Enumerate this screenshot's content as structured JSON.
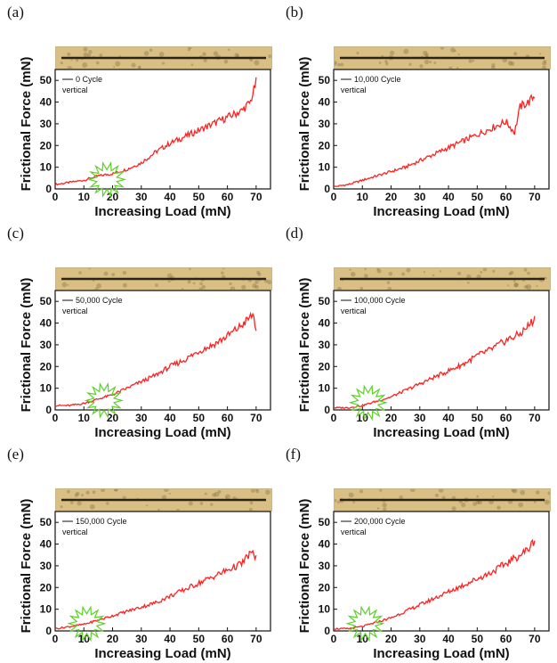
{
  "panels_meta": {
    "line_color": "#ff2020",
    "highlight_color": "#5ecf2a",
    "micro_bg": "#d9bf83",
    "scratch_color": "#2a2418"
  },
  "chart_data": [
    {
      "type": "line",
      "panel_label": "(a)",
      "xlabel": "Increasing Load (mN)",
      "ylabel": "Frictional Force (mN)",
      "xlim": [
        0,
        75
      ],
      "ylim": [
        0,
        55
      ],
      "xticks": [
        0,
        10,
        20,
        30,
        40,
        50,
        60,
        70
      ],
      "yticks": [
        0,
        10,
        20,
        30,
        40,
        50
      ],
      "legend": [
        "0 Cycle",
        "vertical"
      ],
      "highlight_x": 18,
      "series": [
        {
          "x": [
            0,
            5,
            10,
            15,
            20,
            25,
            30,
            35,
            40,
            45,
            50,
            55,
            60,
            65,
            68,
            70
          ],
          "values": [
            2,
            3,
            4,
            6,
            7,
            9,
            12,
            17,
            21,
            24,
            27,
            30,
            33,
            36,
            40,
            49
          ]
        }
      ]
    },
    {
      "type": "line",
      "panel_label": "(b)",
      "xlabel": "Increasing Load (mN)",
      "ylabel": "Frictional Force (mN)",
      "xlim": [
        0,
        75
      ],
      "ylim": [
        0,
        55
      ],
      "xticks": [
        0,
        10,
        20,
        30,
        40,
        50,
        60,
        70
      ],
      "yticks": [
        0,
        10,
        20,
        30,
        40,
        50
      ],
      "legend": [
        "10,000 Cycle",
        "vertical"
      ],
      "highlight_x": null,
      "series": [
        {
          "x": [
            0,
            5,
            10,
            15,
            20,
            25,
            30,
            35,
            40,
            45,
            50,
            55,
            60,
            63,
            65,
            68,
            70
          ],
          "values": [
            1,
            2,
            4,
            6,
            8,
            10,
            13,
            16,
            19,
            22,
            25,
            28,
            31,
            26,
            38,
            40,
            43
          ]
        }
      ]
    },
    {
      "type": "line",
      "panel_label": "(c)",
      "xlabel": "Increasing Load (mN)",
      "ylabel": "Frictional Force (mN)",
      "xlim": [
        0,
        75
      ],
      "ylim": [
        0,
        55
      ],
      "xticks": [
        0,
        10,
        20,
        30,
        40,
        50,
        60,
        70
      ],
      "yticks": [
        0,
        10,
        20,
        30,
        40,
        50
      ],
      "legend": [
        "50,000 Cycle",
        "vertical"
      ],
      "highlight_x": 17,
      "series": [
        {
          "x": [
            0,
            5,
            10,
            15,
            20,
            25,
            30,
            35,
            40,
            45,
            50,
            55,
            60,
            65,
            69,
            70
          ],
          "values": [
            2,
            2,
            3,
            5,
            7,
            10,
            13,
            16,
            20,
            23,
            27,
            30,
            34,
            39,
            44,
            37
          ]
        }
      ]
    },
    {
      "type": "line",
      "panel_label": "(d)",
      "xlabel": "Increasing Load (mN)",
      "ylabel": "Frictional Force (mN)",
      "xlim": [
        0,
        75
      ],
      "ylim": [
        0,
        55
      ],
      "xticks": [
        0,
        10,
        20,
        30,
        40,
        50,
        60,
        70
      ],
      "yticks": [
        0,
        10,
        20,
        30,
        40,
        50
      ],
      "legend": [
        "100,000 Cycle",
        "vertical"
      ],
      "highlight_x": 12,
      "series": [
        {
          "x": [
            0,
            5,
            10,
            15,
            20,
            25,
            30,
            35,
            40,
            45,
            50,
            55,
            60,
            65,
            68,
            70
          ],
          "values": [
            1,
            1,
            2,
            4,
            6,
            9,
            12,
            15,
            18,
            21,
            25,
            28,
            32,
            35,
            39,
            42
          ]
        }
      ]
    },
    {
      "type": "line",
      "panel_label": "(e)",
      "xlabel": "Increasing Load (mN)",
      "ylabel": "Frictional Force (mN)",
      "xlim": [
        0,
        75
      ],
      "ylim": [
        0,
        55
      ],
      "xticks": [
        0,
        10,
        20,
        30,
        40,
        50,
        60,
        70
      ],
      "yticks": [
        0,
        10,
        20,
        30,
        40,
        50
      ],
      "legend": [
        "150,000 Cycle",
        "vertical"
      ],
      "highlight_x": 11,
      "series": [
        {
          "x": [
            0,
            5,
            10,
            15,
            20,
            25,
            30,
            35,
            40,
            45,
            50,
            55,
            60,
            65,
            68,
            70
          ],
          "values": [
            1,
            2,
            3,
            5,
            7,
            9,
            11,
            13,
            16,
            19,
            22,
            25,
            28,
            31,
            36,
            34
          ]
        }
      ]
    },
    {
      "type": "line",
      "panel_label": "(f)",
      "xlabel": "Increasing Load (mN)",
      "ylabel": "Frictional Force (mN)",
      "xlim": [
        0,
        75
      ],
      "ylim": [
        0,
        55
      ],
      "xticks": [
        0,
        10,
        20,
        30,
        40,
        50,
        60,
        70
      ],
      "yticks": [
        0,
        10,
        20,
        30,
        40,
        50
      ],
      "legend": [
        "200,000 Cycle",
        "vertical"
      ],
      "highlight_x": 11,
      "series": [
        {
          "x": [
            0,
            5,
            10,
            15,
            20,
            25,
            30,
            35,
            40,
            45,
            50,
            55,
            60,
            65,
            68,
            70
          ],
          "values": [
            1,
            1,
            2,
            4,
            6,
            9,
            12,
            15,
            18,
            21,
            24,
            27,
            31,
            35,
            38,
            42
          ]
        }
      ]
    }
  ]
}
